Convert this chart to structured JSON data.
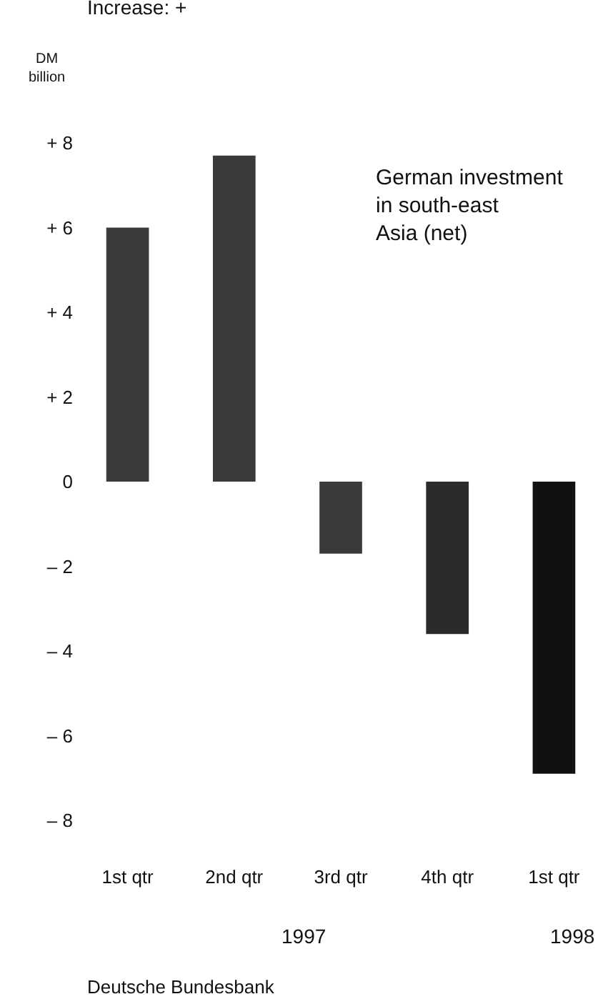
{
  "chart_data": {
    "type": "bar",
    "title": "German investment in south-east Asia (net)",
    "subtitle": "Increase: +",
    "ylabel": "DM billion",
    "categories": [
      "1st qtr",
      "2nd qtr",
      "3rd qtr",
      "4th qtr",
      "1st qtr"
    ],
    "values": [
      6.0,
      7.7,
      -1.7,
      -3.6,
      -6.9
    ],
    "colors": [
      "#3a3a3a",
      "#3a3a3a",
      "#3a3a3a",
      "#2a2a2a",
      "#111111"
    ],
    "ylim": [
      -8,
      8
    ],
    "yticks": [
      {
        "value": 8,
        "label": "+ 8"
      },
      {
        "value": 6,
        "label": "+ 6"
      },
      {
        "value": 4,
        "label": "+ 4"
      },
      {
        "value": 2,
        "label": "+ 2"
      },
      0,
      {
        "value": -2,
        "label": "– 2"
      },
      {
        "value": -4,
        "label": "– 4"
      },
      {
        "value": -6,
        "label": "– 6"
      },
      {
        "value": -8,
        "label": "– 8"
      }
    ],
    "grid": false,
    "annotations": [
      "1997",
      "1998",
      "Deutsche Bundesbank"
    ]
  }
}
